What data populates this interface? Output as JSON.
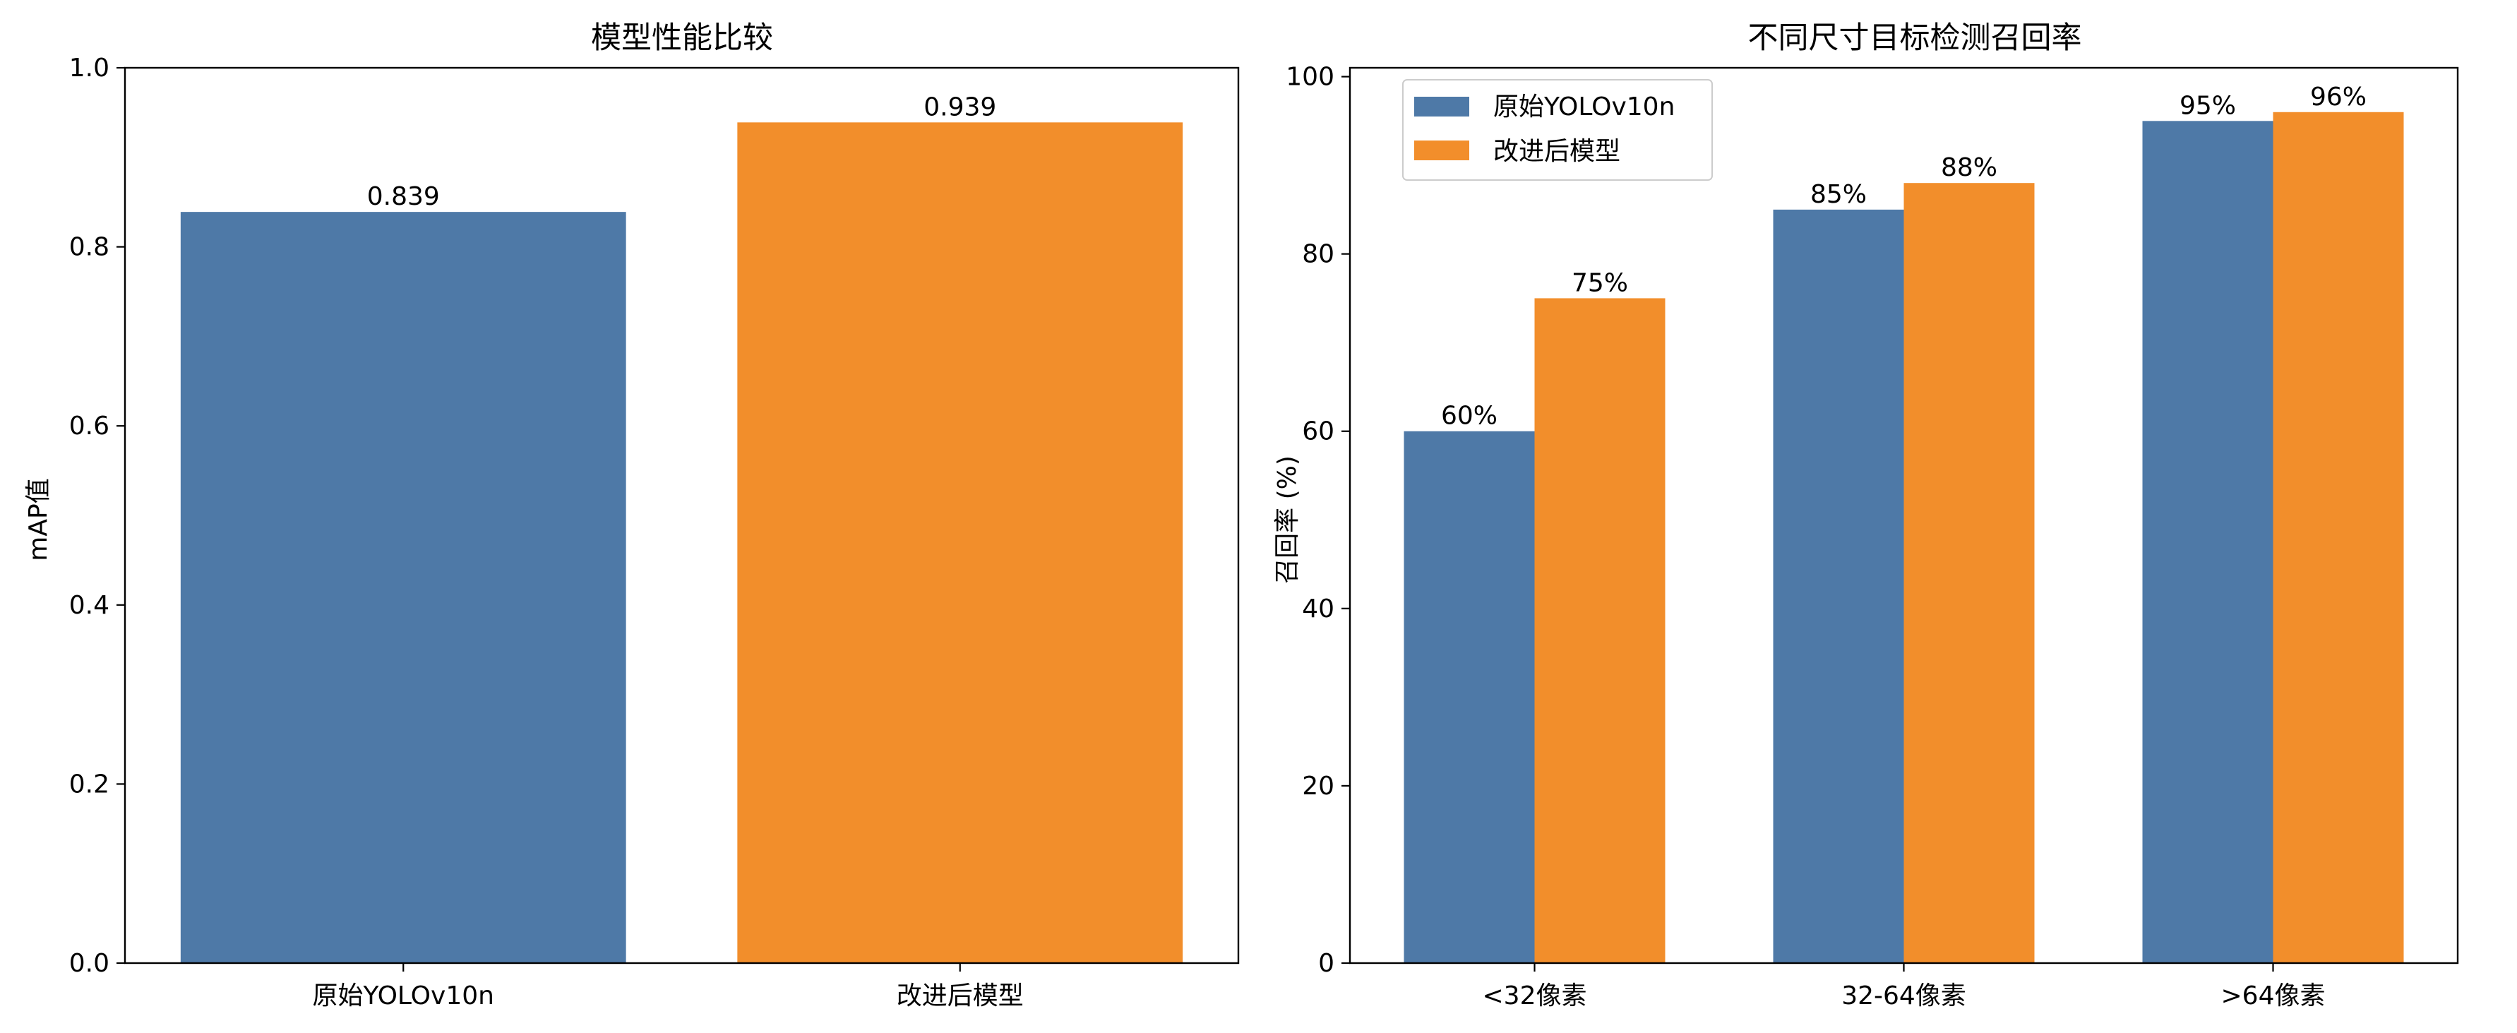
{
  "chart_data": [
    {
      "type": "bar",
      "title": "模型性能比较",
      "xlabel": "",
      "ylabel": "mAP值",
      "ylim": [
        0,
        1.0
      ],
      "yticks": [
        "0.0",
        "0.2",
        "0.4",
        "0.6",
        "0.8",
        "1.0"
      ],
      "categories": [
        "原始YOLOv10n",
        "改进后模型"
      ],
      "values": [
        0.839,
        0.939
      ],
      "value_labels": [
        "0.839",
        "0.939"
      ],
      "colors": [
        "#4e79a7",
        "#f28e2b"
      ],
      "grid": false
    },
    {
      "type": "bar",
      "title": "不同尺寸目标检测召回率",
      "xlabel": "",
      "ylabel": "召回率 (%)",
      "ylim": [
        0,
        101
      ],
      "yticks": [
        "0",
        "20",
        "40",
        "60",
        "80",
        "100"
      ],
      "categories": [
        "<32像素",
        "32-64像素",
        ">64像素"
      ],
      "series": [
        {
          "name": "原始YOLOv10n",
          "color": "#4e79a7",
          "values": [
            60,
            85,
            95
          ],
          "value_labels": [
            "60%",
            "85%",
            "95%"
          ]
        },
        {
          "name": "改进后模型",
          "color": "#f28e2b",
          "values": [
            75,
            88,
            96
          ],
          "value_labels": [
            "75%",
            "88%",
            "96%"
          ]
        }
      ],
      "legend": "top-left",
      "grid": false
    }
  ]
}
